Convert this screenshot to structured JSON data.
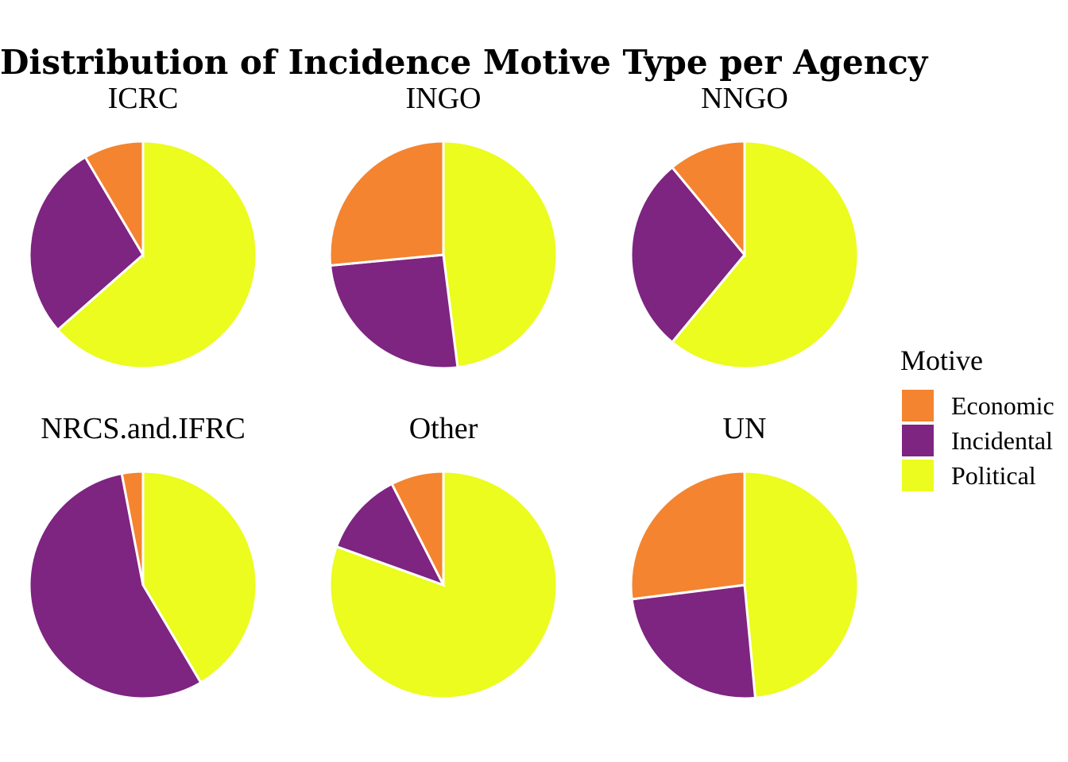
{
  "chart_data": {
    "type": "pie",
    "title": "Distribution of Incidence Motive Type per Agency",
    "legend": {
      "title": "Motive",
      "placement": "right",
      "entries": [
        {
          "label": "Economic",
          "color": "#F4842F"
        },
        {
          "label": "Incidental",
          "color": "#7E2481"
        },
        {
          "label": "Political",
          "color": "#EBFC1E"
        }
      ]
    },
    "facets": [
      {
        "label": "ICRC",
        "slices": {
          "Economic": 8.5,
          "Incidental": 28.0,
          "Political": 63.5
        }
      },
      {
        "label": "INGO",
        "slices": {
          "Economic": 26.5,
          "Incidental": 25.5,
          "Political": 48.0
        }
      },
      {
        "label": "NNGO",
        "slices": {
          "Economic": 11.0,
          "Incidental": 28.0,
          "Political": 61.0
        }
      },
      {
        "label": "NRCS.and.IFRC",
        "slices": {
          "Economic": 3.0,
          "Incidental": 55.5,
          "Political": 41.5
        }
      },
      {
        "label": "Other",
        "slices": {
          "Economic": 7.5,
          "Incidental": 12.0,
          "Political": 80.5
        }
      },
      {
        "label": "UN",
        "slices": {
          "Economic": 27.0,
          "Incidental": 24.5,
          "Political": 48.5
        }
      }
    ]
  }
}
